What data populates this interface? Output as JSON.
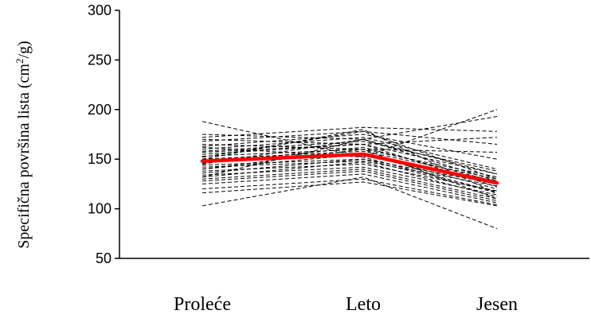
{
  "chart_data": {
    "type": "line",
    "title": "",
    "xlabel": "",
    "ylabel": "Specifična površina lista (cm²/g)",
    "ylabel_parts": {
      "before": "Specifična površina lista (cm",
      "sup": "2",
      "after": "/g)"
    },
    "categories": [
      "Proleće",
      "Leto",
      "Jesen"
    ],
    "ylim": [
      50,
      300
    ],
    "yticks": [
      50,
      100,
      150,
      200,
      250,
      300
    ],
    "grid": false,
    "legend": "none",
    "colors": {
      "individual": "#000000",
      "mean": "#ff0000"
    },
    "mean_series": {
      "values": [
        148,
        155,
        126
      ]
    },
    "individual_series": [
      {
        "values": [
          188,
          152,
          200
        ]
      },
      {
        "values": [
          175,
          170,
          193
        ]
      },
      {
        "values": [
          172,
          182,
          178
        ]
      },
      {
        "values": [
          170,
          165,
          172
        ]
      },
      {
        "values": [
          168,
          178,
          165
        ]
      },
      {
        "values": [
          165,
          160,
          157
        ]
      },
      {
        "values": [
          163,
          175,
          150
        ]
      },
      {
        "values": [
          160,
          172,
          140
        ]
      },
      {
        "values": [
          158,
          168,
          138
        ]
      },
      {
        "values": [
          155,
          165,
          135
        ]
      },
      {
        "values": [
          153,
          160,
          132
        ]
      },
      {
        "values": [
          150,
          158,
          130
        ]
      },
      {
        "values": [
          148,
          155,
          128
        ]
      },
      {
        "values": [
          146,
          162,
          127
        ]
      },
      {
        "values": [
          144,
          150,
          125
        ]
      },
      {
        "values": [
          142,
          148,
          123
        ]
      },
      {
        "values": [
          140,
          155,
          120
        ]
      },
      {
        "values": [
          138,
          145,
          118
        ]
      },
      {
        "values": [
          136,
          150,
          116
        ]
      },
      {
        "values": [
          134,
          142,
          114
        ]
      },
      {
        "values": [
          132,
          147,
          112
        ]
      },
      {
        "values": [
          130,
          140,
          110
        ]
      },
      {
        "values": [
          128,
          138,
          108
        ]
      },
      {
        "values": [
          125,
          135,
          106
        ]
      },
      {
        "values": [
          120,
          130,
          104
        ]
      },
      {
        "values": [
          116,
          127,
          103
        ]
      },
      {
        "values": [
          103,
          132,
          80
        ]
      },
      {
        "values": [
          145,
          170,
          135
        ]
      },
      {
        "values": [
          152,
          178,
          130
        ]
      },
      {
        "values": [
          157,
          165,
          122
        ]
      },
      {
        "values": [
          162,
          152,
          117
        ]
      },
      {
        "values": [
          140,
          160,
          110
        ]
      },
      {
        "values": [
          132,
          170,
          128
        ]
      },
      {
        "values": [
          150,
          180,
          115
        ]
      }
    ]
  }
}
